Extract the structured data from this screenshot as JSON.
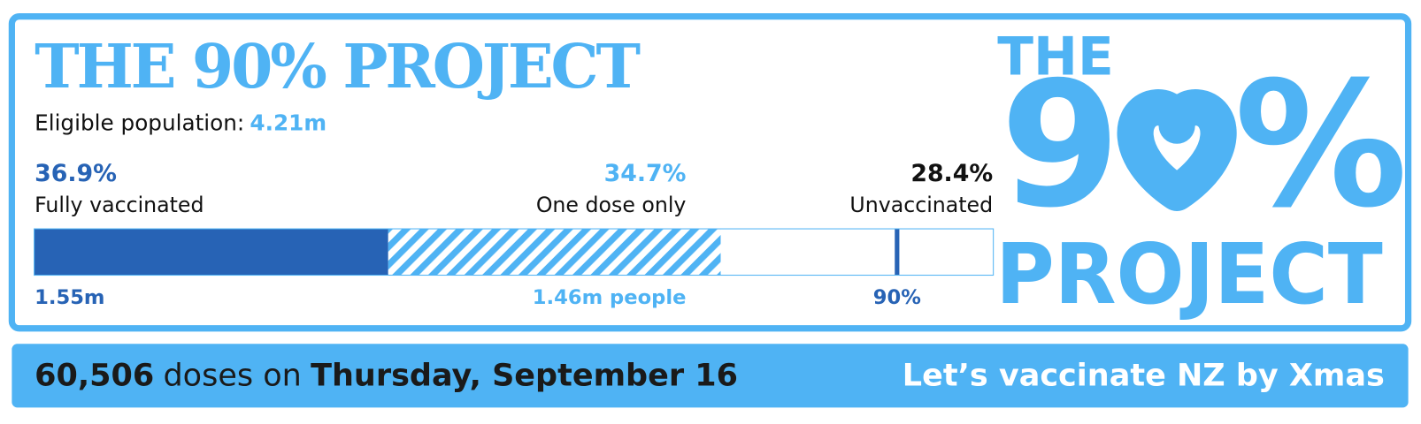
{
  "chart_data": {
    "type": "stacked-bar",
    "title": "THE 90% PROJECT",
    "population_label": "Eligible population:",
    "population_value": "4.21m",
    "categories": [
      "Fully vaccinated",
      "One dose only",
      "Unvaccinated"
    ],
    "values": [
      36.9,
      34.7,
      28.4
    ],
    "value_labels": [
      "36.9%",
      "34.7%",
      "28.4%"
    ],
    "count_labels": [
      "1.55m",
      "1.46m people"
    ],
    "colors": [
      "#2763b5",
      "#4fb3f4",
      "#ffffff"
    ],
    "xlim": [
      0,
      100
    ],
    "target": {
      "value": 90,
      "label": "90%"
    },
    "footer": {
      "count": "60,506",
      "middle": "doses on",
      "date": "Thursday, September 16",
      "slogan": "Let’s vaccinate NZ by Xmas"
    },
    "logo": {
      "top": "THE",
      "digit": "9",
      "symbol": "%",
      "bottom": "PROJECT"
    }
  }
}
